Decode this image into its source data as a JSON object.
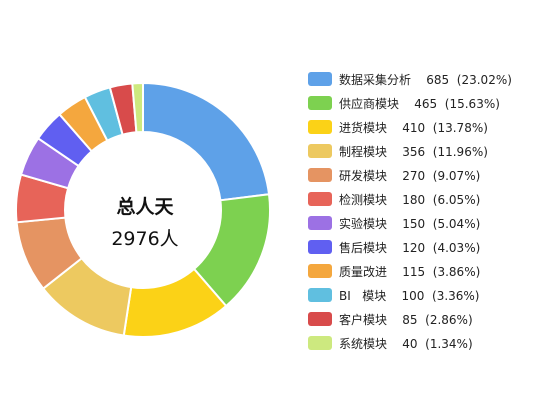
{
  "chart_data": {
    "type": "pie",
    "variant": "donut",
    "center": {
      "title": "总人天",
      "value": "2976人"
    },
    "legend_position": "right",
    "slices": [
      {
        "label": "数据采集分析",
        "value": 685,
        "percent": "23.02%",
        "color": "#5ea1e8",
        "legend_text": "数据采集分析    685  (23.02%)"
      },
      {
        "label": "供应商模块",
        "value": 465,
        "percent": "15.63%",
        "color": "#7dd150",
        "legend_text": "供应商模块    465  (15.63%)"
      },
      {
        "label": "进货模块",
        "value": 410,
        "percent": "13.78%",
        "color": "#fbd217",
        "legend_text": "进货模块    410  (13.78%)"
      },
      {
        "label": "制程模块",
        "value": 356,
        "percent": "11.96%",
        "color": "#edc960",
        "legend_text": "制程模块    356  (11.96%)"
      },
      {
        "label": "研发模块",
        "value": 270,
        "percent": "9.07%",
        "color": "#e59462",
        "legend_text": "研发模块    270  (9.07%)"
      },
      {
        "label": "检测模块",
        "value": 180,
        "percent": "6.05%",
        "color": "#e76459",
        "legend_text": "检测模块    180  (6.05%)"
      },
      {
        "label": "实验模块",
        "value": 150,
        "percent": "5.04%",
        "color": "#9c71e4",
        "legend_text": "实验模块    150  (5.04%)"
      },
      {
        "label": "售后模块",
        "value": 120,
        "percent": "4.03%",
        "color": "#605ff1",
        "legend_text": "售后模块    120  (4.03%)"
      },
      {
        "label": "质量改进",
        "value": 115,
        "percent": "3.86%",
        "color": "#f4a73e",
        "legend_text": "质量改进    115  (3.86%)"
      },
      {
        "label": "BI  模块",
        "value": 100,
        "percent": "3.36%",
        "color": "#60bfe0",
        "legend_text": "BI   模块    100  (3.36%)"
      },
      {
        "label": "客户模块",
        "value": 85,
        "percent": "2.86%",
        "color": "#d84b4b",
        "legend_text": "客户模块    85  (2.86%)"
      },
      {
        "label": "系统模块",
        "value": 40,
        "percent": "1.34%",
        "color": "#cde97f",
        "legend_text": "系统模块    40  (1.34%)"
      }
    ]
  }
}
